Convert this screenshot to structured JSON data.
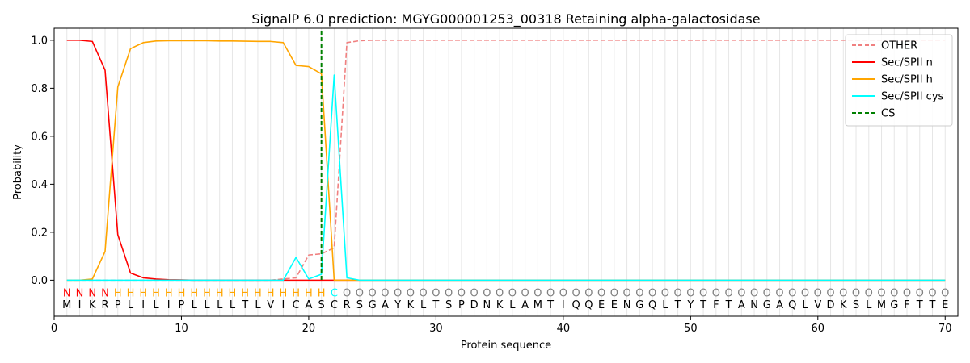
{
  "chart_data": {
    "type": "line",
    "title": "SignalP 6.0 prediction: MGYG000001253_00318 Retaining alpha-galactosidase",
    "xlabel": "Protein sequence",
    "ylabel": "Probability",
    "xlim": [
      0,
      71
    ],
    "ylim": [
      -0.15,
      1.05
    ],
    "xticks": [
      0,
      10,
      20,
      30,
      40,
      50,
      60,
      70
    ],
    "yticks": [
      0.0,
      0.2,
      0.4,
      0.6,
      0.8,
      1.0
    ],
    "xtick_labels": [
      "0",
      "10",
      "20",
      "30",
      "40",
      "50",
      "60",
      "70"
    ],
    "ytick_labels": [
      "0.0",
      "0.2",
      "0.4",
      "0.6",
      "0.8",
      "1.0"
    ],
    "legend_position": "top-right",
    "sequence": [
      "M",
      "I",
      "K",
      "R",
      "P",
      "L",
      "I",
      "L",
      "I",
      "P",
      "L",
      "L",
      "L",
      "L",
      "T",
      "L",
      "V",
      "I",
      "C",
      "A",
      "S",
      "C",
      "R",
      "S",
      "G",
      "A",
      "Y",
      "K",
      "L",
      "T",
      "S",
      "P",
      "D",
      "N",
      "K",
      "L",
      "A",
      "M",
      "T",
      "I",
      "Q",
      "Q",
      "E",
      "E",
      "N",
      "G",
      "Q",
      "L",
      "T",
      "Y",
      "T",
      "F",
      "T",
      "A",
      "N",
      "G",
      "A",
      "Q",
      "L",
      "V",
      "D",
      "K",
      "S",
      "L",
      "M",
      "G",
      "F",
      "T",
      "T",
      "E"
    ],
    "region_labels": [
      "N",
      "N",
      "N",
      "N",
      "H",
      "H",
      "H",
      "H",
      "H",
      "H",
      "H",
      "H",
      "H",
      "H",
      "H",
      "H",
      "H",
      "H",
      "H",
      "H",
      "H",
      "C",
      "O",
      "O",
      "O",
      "O",
      "O",
      "O",
      "O",
      "O",
      "O",
      "O",
      "O",
      "O",
      "O",
      "O",
      "O",
      "O",
      "O",
      "O",
      "O",
      "O",
      "O",
      "O",
      "O",
      "O",
      "O",
      "O",
      "O",
      "O",
      "O",
      "O",
      "O",
      "O",
      "O",
      "O",
      "O",
      "O",
      "O",
      "O",
      "O",
      "O",
      "O",
      "O",
      "O",
      "O",
      "O",
      "O",
      "O",
      "O"
    ],
    "region_colors": {
      "N": "#ff0000",
      "H": "#ffa500",
      "C": "#00ffff",
      "O": "#808080"
    },
    "cs_position": 21,
    "cs_name": "CS",
    "cs_color": "#008000",
    "series": [
      {
        "name": "OTHER",
        "color": "#f08080",
        "dashed": true,
        "values": [
          0.0,
          0.0,
          0.0,
          0.0,
          0.0,
          0.0,
          0.0,
          0.0,
          0.0,
          0.0,
          0.0,
          0.0,
          0.0,
          0.0,
          0.0,
          0.0,
          0.0,
          0.005,
          0.01,
          0.105,
          0.11,
          0.135,
          0.99,
          0.998,
          1.0,
          1.0,
          1.0,
          1.0,
          1.0,
          1.0,
          1.0,
          1.0,
          1.0,
          1.0,
          1.0,
          1.0,
          1.0,
          1.0,
          1.0,
          1.0,
          1.0,
          1.0,
          1.0,
          1.0,
          1.0,
          1.0,
          1.0,
          1.0,
          1.0,
          1.0,
          1.0,
          1.0,
          1.0,
          1.0,
          1.0,
          1.0,
          1.0,
          1.0,
          1.0,
          1.0,
          1.0,
          1.0,
          1.0,
          1.0,
          1.0,
          1.0,
          1.0,
          1.0,
          1.0,
          1.0
        ]
      },
      {
        "name": "Sec/SPII n",
        "color": "#ff0000",
        "dashed": false,
        "values": [
          1.0,
          1.0,
          0.995,
          0.875,
          0.19,
          0.03,
          0.01,
          0.005,
          0.002,
          0.001,
          0.0,
          0.0,
          0.0,
          0.0,
          0.0,
          0.0,
          0.0,
          0.0,
          0.0,
          0.0,
          0.0,
          0.0,
          0.0,
          0.0,
          0.0,
          0.0,
          0.0,
          0.0,
          0.0,
          0.0,
          0.0,
          0.0,
          0.0,
          0.0,
          0.0,
          0.0,
          0.0,
          0.0,
          0.0,
          0.0,
          0.0,
          0.0,
          0.0,
          0.0,
          0.0,
          0.0,
          0.0,
          0.0,
          0.0,
          0.0,
          0.0,
          0.0,
          0.0,
          0.0,
          0.0,
          0.0,
          0.0,
          0.0,
          0.0,
          0.0,
          0.0,
          0.0,
          0.0,
          0.0,
          0.0,
          0.0,
          0.0,
          0.0,
          0.0,
          0.0
        ]
      },
      {
        "name": "Sec/SPII h",
        "color": "#ffa500",
        "dashed": false,
        "values": [
          0.0,
          0.0,
          0.005,
          0.12,
          0.805,
          0.965,
          0.99,
          0.997,
          0.998,
          0.998,
          0.998,
          0.998,
          0.997,
          0.997,
          0.996,
          0.995,
          0.995,
          0.99,
          0.895,
          0.89,
          0.86,
          0.0,
          0.0,
          0.0,
          0.0,
          0.0,
          0.0,
          0.0,
          0.0,
          0.0,
          0.0,
          0.0,
          0.0,
          0.0,
          0.0,
          0.0,
          0.0,
          0.0,
          0.0,
          0.0,
          0.0,
          0.0,
          0.0,
          0.0,
          0.0,
          0.0,
          0.0,
          0.0,
          0.0,
          0.0,
          0.0,
          0.0,
          0.0,
          0.0,
          0.0,
          0.0,
          0.0,
          0.0,
          0.0,
          0.0,
          0.0,
          0.0,
          0.0,
          0.0,
          0.0,
          0.0,
          0.0,
          0.0,
          0.0,
          0.0
        ]
      },
      {
        "name": "Sec/SPII cys",
        "color": "#00ffff",
        "dashed": false,
        "values": [
          0.0,
          0.0,
          0.0,
          0.0,
          0.0,
          0.0,
          0.0,
          0.0,
          0.0,
          0.0,
          0.0,
          0.0,
          0.0,
          0.0,
          0.0,
          0.0,
          0.0,
          0.0,
          0.095,
          0.005,
          0.025,
          0.855,
          0.01,
          0.0,
          0.0,
          0.0,
          0.0,
          0.0,
          0.0,
          0.0,
          0.0,
          0.0,
          0.0,
          0.0,
          0.0,
          0.0,
          0.0,
          0.0,
          0.0,
          0.0,
          0.0,
          0.0,
          0.0,
          0.0,
          0.0,
          0.0,
          0.0,
          0.0,
          0.0,
          0.0,
          0.0,
          0.0,
          0.0,
          0.0,
          0.0,
          0.0,
          0.0,
          0.0,
          0.0,
          0.0,
          0.0,
          0.0,
          0.0,
          0.0,
          0.0,
          0.0,
          0.0,
          0.0,
          0.0,
          0.0
        ]
      }
    ]
  }
}
